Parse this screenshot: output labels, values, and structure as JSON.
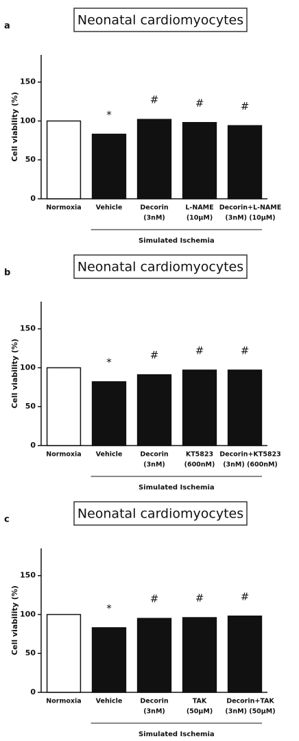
{
  "chart_data": [
    {
      "type": "bar",
      "panel_label": "a",
      "title": "Neonatal cardiomyocytes",
      "y_label": "Cell viability (%)",
      "categories": [
        [
          "Normoxia"
        ],
        [
          "Vehicle"
        ],
        [
          "Decorin",
          "(3nM)"
        ],
        [
          "L-NAME",
          "(10μM)"
        ],
        [
          "Decorin+L-NAME",
          "(3nM) (10μM)"
        ]
      ],
      "values": [
        100,
        83,
        102,
        98,
        94
      ],
      "colors": [
        "#ffffff",
        "#111111",
        "#111111",
        "#111111",
        "#111111"
      ],
      "annotations": [
        null,
        "*",
        "#",
        "#",
        "#"
      ],
      "group_label": "Simulated Ischemia",
      "ylim": [
        0,
        185
      ],
      "yticks": [
        0,
        50,
        100,
        150
      ]
    },
    {
      "type": "bar",
      "panel_label": "b",
      "title": "Neonatal cardiomyocytes",
      "y_label": "Cell viability (%)",
      "categories": [
        [
          "Normoxia"
        ],
        [
          "Vehicle"
        ],
        [
          "Decorin",
          "(3nM)"
        ],
        [
          "KT5823",
          "(600nM)"
        ],
        [
          "Decorin+KT5823",
          "(3nM) (600nM)"
        ]
      ],
      "values": [
        100,
        82,
        91,
        97,
        97
      ],
      "colors": [
        "#ffffff",
        "#111111",
        "#111111",
        "#111111",
        "#111111"
      ],
      "annotations": [
        null,
        "*",
        "#",
        "#",
        "#"
      ],
      "group_label": "Simulated Ischemia",
      "ylim": [
        0,
        185
      ],
      "yticks": [
        0,
        50,
        100,
        150
      ]
    },
    {
      "type": "bar",
      "panel_label": "c",
      "title": "Neonatal cardiomyocytes",
      "y_label": "Cell viability (%)",
      "categories": [
        [
          "Normoxia"
        ],
        [
          "Vehicle"
        ],
        [
          "Decorin",
          "(3nM)"
        ],
        [
          "TAK",
          "(50μM)"
        ],
        [
          "Decorin+TAK",
          "(3nM) (50μM)"
        ]
      ],
      "values": [
        100,
        83,
        95,
        96,
        98
      ],
      "colors": [
        "#ffffff",
        "#111111",
        "#111111",
        "#111111",
        "#111111"
      ],
      "annotations": [
        null,
        "*",
        "#",
        "#",
        "#"
      ],
      "group_label": "Simulated Ischemia",
      "ylim": [
        0,
        185
      ],
      "yticks": [
        0,
        50,
        100,
        150
      ]
    }
  ]
}
